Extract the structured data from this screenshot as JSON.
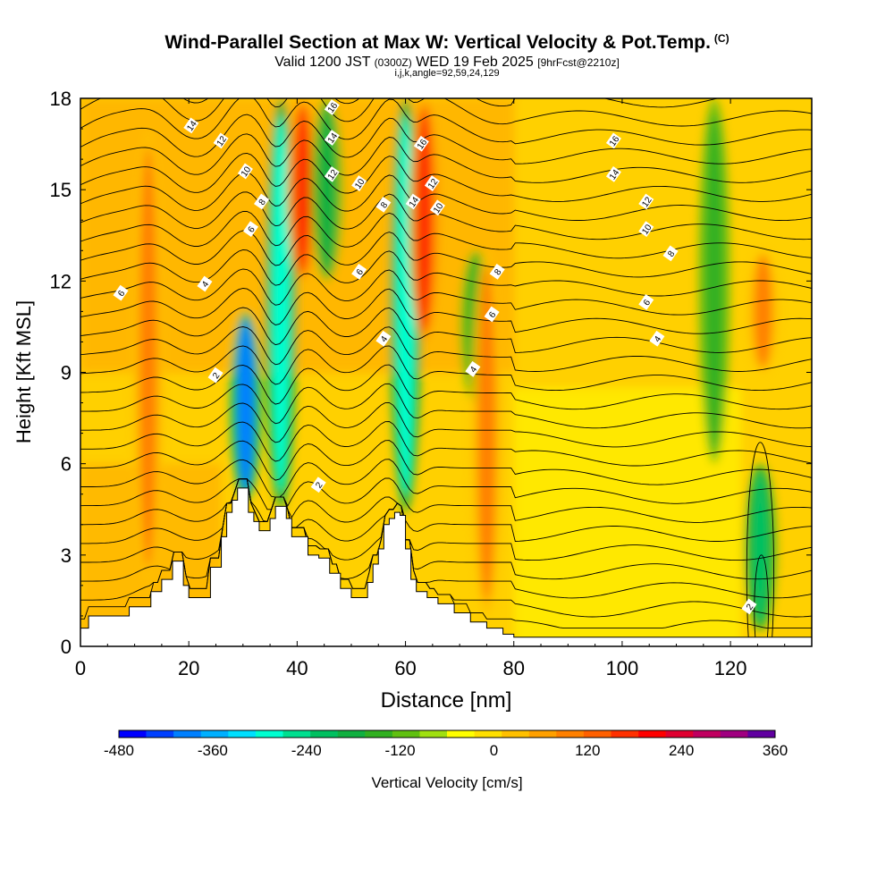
{
  "header": {
    "title": "Wind-Parallel Section at Max W: Vertical Velocity & Pot.Temp.",
    "copyright": "(C)",
    "valid_a": "Valid 1200 JST",
    "valid_b": "(0300Z)",
    "valid_c": "WED 19 Feb 2025",
    "valid_d": "[9hrFcst@2210z]",
    "params": "i,j,k,angle=92,59,24,129"
  },
  "chart_data": {
    "type": "heatmap",
    "xlabel": "Distance [nm]",
    "ylabel": "Height [Kft MSL]",
    "xlim": [
      0,
      135
    ],
    "ylim": [
      0,
      18
    ],
    "xticks": [
      0,
      20,
      40,
      60,
      80,
      100,
      120
    ],
    "yticks": [
      0,
      3,
      6,
      9,
      12,
      15,
      18
    ],
    "colorbar": {
      "label": "Vertical Velocity [cm/s]",
      "min": -480,
      "max": 360,
      "step": 40,
      "tick_labels": [
        "-480",
        "-360",
        "-240",
        "-120",
        "0",
        "120",
        "240",
        "360"
      ],
      "tick_values": [
        -480,
        -360,
        -240,
        -120,
        0,
        120,
        240,
        360
      ],
      "colors": [
        "#0000ff",
        "#0040ff",
        "#0080ff",
        "#00b0ff",
        "#00e0ff",
        "#00ffd0",
        "#00e090",
        "#00c060",
        "#10b040",
        "#30b020",
        "#60c010",
        "#a0e010",
        "#ffff00",
        "#ffe000",
        "#ffc000",
        "#ffa000",
        "#ff8000",
        "#ff6000",
        "#ff3000",
        "#ff0000",
        "#e00030",
        "#c00060",
        "#a00080",
        "#6000a0"
      ]
    },
    "terrain_profile": {
      "x": [
        0,
        1.5,
        5,
        9,
        13,
        15,
        17,
        19,
        20,
        21,
        24,
        26,
        27,
        28,
        29,
        30,
        31,
        32,
        33,
        35,
        36,
        38,
        39,
        41,
        42,
        44,
        46,
        48,
        50,
        52,
        53,
        54,
        55,
        56,
        57,
        58,
        59,
        60,
        61,
        62,
        64,
        66,
        69,
        72,
        75,
        78,
        80,
        135
      ],
      "y": [
        0.6,
        1.0,
        1.0,
        1.3,
        1.8,
        2.2,
        2.8,
        2.0,
        1.6,
        1.6,
        2.6,
        3.6,
        4.4,
        4.8,
        5.2,
        5.2,
        4.4,
        4.1,
        3.8,
        4.2,
        4.6,
        4.2,
        3.6,
        3.6,
        3.0,
        2.9,
        2.4,
        1.9,
        1.6,
        1.6,
        2.1,
        2.7,
        3.2,
        4.0,
        4.2,
        4.4,
        4.3,
        3.2,
        2.2,
        1.8,
        1.6,
        1.4,
        1.1,
        0.8,
        0.6,
        0.4,
        0.3,
        0.3
      ]
    },
    "velocity_features": [
      {
        "x": 12.5,
        "y_range": [
          2,
          17
        ],
        "w": 180,
        "kind": "updraft"
      },
      {
        "x": 30.5,
        "y_range": [
          4.8,
          11
        ],
        "w": -380,
        "kind": "downdraft"
      },
      {
        "x": 37,
        "y_range": [
          4.5,
          18
        ],
        "w": -260,
        "kind": "downdraft"
      },
      {
        "x": 41,
        "y_range": [
          12,
          18
        ],
        "w": 240,
        "kind": "updraft"
      },
      {
        "x": 45.5,
        "y_range": [
          12,
          18
        ],
        "w": -160,
        "kind": "downdraft"
      },
      {
        "x": 60,
        "y_range": [
          4.4,
          18
        ],
        "w": -260,
        "kind": "downdraft"
      },
      {
        "x": 63.5,
        "y_range": [
          10,
          18
        ],
        "w": 240,
        "kind": "updraft"
      },
      {
        "x": 73,
        "y_range": [
          8,
          13
        ],
        "w": -120,
        "kind": "downdraft"
      },
      {
        "x": 75,
        "y_range": [
          1,
          13
        ],
        "w": 180,
        "kind": "updraft"
      },
      {
        "x": 117,
        "y_range": [
          6,
          18
        ],
        "w": -100,
        "kind": "downdraft"
      },
      {
        "x": 125.5,
        "y_range": [
          0.5,
          6
        ],
        "w": -180,
        "kind": "downdraft"
      },
      {
        "x": 126,
        "y_range": [
          9,
          13
        ],
        "w": 160,
        "kind": "updraft"
      }
    ],
    "isentropes": [
      {
        "label": "2",
        "base": 4.4,
        "label_pos": [
          43.5,
          5.3
        ]
      },
      {
        "label": "2",
        "base": 8.6,
        "label_pos": [
          25,
          8.9
        ]
      },
      {
        "label": "4",
        "base": 9.8,
        "label_pos": [
          56,
          10.1
        ]
      },
      {
        "label": "4",
        "base": 11.2,
        "label_pos": [
          23,
          11.9
        ]
      },
      {
        "label": "6",
        "base": 12.4,
        "label_pos": [
          7.5,
          11.6
        ]
      },
      {
        "label": "6",
        "base": 13.4,
        "label_pos": [
          31.5,
          13.7
        ]
      },
      {
        "label": "8",
        "base": 14.0,
        "label_pos": [
          33.5,
          14.6
        ]
      },
      {
        "label": "10",
        "base": 15.2,
        "label_pos": [
          30.5,
          15.6
        ]
      },
      {
        "label": "12",
        "base": 16.2,
        "label_pos": [
          26,
          16.6
        ]
      },
      {
        "label": "14",
        "base": 17.0,
        "label_pos": [
          20.5,
          17.1
        ]
      },
      {
        "label": "16",
        "base": 17.6,
        "label_pos": [
          98.5,
          16.6
        ]
      }
    ],
    "contour_labels": [
      {
        "text": "2",
        "x": 25,
        "y": 8.9
      },
      {
        "text": "2",
        "x": 44,
        "y": 5.3
      },
      {
        "text": "2",
        "x": 123.5,
        "y": 1.3
      },
      {
        "text": "4",
        "x": 23,
        "y": 11.9
      },
      {
        "text": "4",
        "x": 56,
        "y": 10.1
      },
      {
        "text": "4",
        "x": 72.5,
        "y": 9.1
      },
      {
        "text": "4",
        "x": 106.5,
        "y": 10.1
      },
      {
        "text": "6",
        "x": 7.5,
        "y": 11.6
      },
      {
        "text": "6",
        "x": 31.5,
        "y": 13.7
      },
      {
        "text": "6",
        "x": 51.5,
        "y": 12.3
      },
      {
        "text": "6",
        "x": 76,
        "y": 10.9
      },
      {
        "text": "6",
        "x": 104.5,
        "y": 11.3
      },
      {
        "text": "8",
        "x": 33.5,
        "y": 14.6
      },
      {
        "text": "8",
        "x": 56,
        "y": 14.5
      },
      {
        "text": "8",
        "x": 77,
        "y": 12.3
      },
      {
        "text": "8",
        "x": 109,
        "y": 12.9
      },
      {
        "text": "10",
        "x": 30.5,
        "y": 15.6
      },
      {
        "text": "10",
        "x": 51.5,
        "y": 15.2
      },
      {
        "text": "10",
        "x": 66,
        "y": 14.4
      },
      {
        "text": "10",
        "x": 104.5,
        "y": 13.7
      },
      {
        "text": "12",
        "x": 26,
        "y": 16.6
      },
      {
        "text": "12",
        "x": 46.5,
        "y": 15.5
      },
      {
        "text": "12",
        "x": 65,
        "y": 15.2
      },
      {
        "text": "12",
        "x": 104.5,
        "y": 14.6
      },
      {
        "text": "14",
        "x": 20.5,
        "y": 17.1
      },
      {
        "text": "14",
        "x": 46.5,
        "y": 16.7
      },
      {
        "text": "14",
        "x": 61.5,
        "y": 14.6
      },
      {
        "text": "14",
        "x": 98.5,
        "y": 15.5
      },
      {
        "text": "16",
        "x": 46.5,
        "y": 17.7
      },
      {
        "text": "16",
        "x": 63,
        "y": 16.5
      },
      {
        "text": "16",
        "x": 98.5,
        "y": 16.6
      }
    ]
  }
}
